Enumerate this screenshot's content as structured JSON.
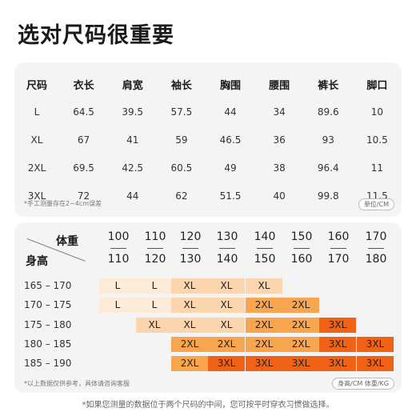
{
  "title": "选对尺码很重要",
  "size_table": {
    "headers": [
      "尺码",
      "衣长",
      "肩宽",
      "袖长",
      "胸围",
      "腰围",
      "裤长",
      "脚口"
    ],
    "rows": [
      [
        "L",
        "64.5",
        "39.5",
        "57.5",
        "44",
        "34",
        "89.6",
        "10"
      ],
      [
        "XL",
        "67",
        "41",
        "59",
        "46.5",
        "36",
        "93",
        "10.5"
      ],
      [
        "2XL",
        "69.5",
        "42.5",
        "60.5",
        "49",
        "38",
        "96.4",
        "11"
      ],
      [
        "3XL",
        "72",
        "44",
        "62",
        "51.5",
        "40",
        "99.8",
        "11.5"
      ]
    ],
    "note": "*手工测量存在2~4cm误差",
    "unit": "单位/CM"
  },
  "recommend": {
    "weight_label": "体重",
    "height_label": "身高",
    "weights": [
      {
        "top": "100",
        "bottom": "110"
      },
      {
        "top": "110",
        "bottom": "120"
      },
      {
        "top": "120",
        "bottom": "130"
      },
      {
        "top": "130",
        "bottom": "140"
      },
      {
        "top": "140",
        "bottom": "150"
      },
      {
        "top": "150",
        "bottom": "160"
      },
      {
        "top": "160",
        "bottom": "170"
      },
      {
        "top": "170",
        "bottom": "180"
      }
    ],
    "heights": [
      "165 – 170",
      "170 – 175",
      "175 – 180",
      "180 – 185",
      "185 – 190"
    ],
    "grid": [
      [
        "L",
        "L",
        "XL",
        "XL",
        "XL",
        "",
        "",
        ""
      ],
      [
        "L",
        "L",
        "XL",
        "XL",
        "2XL",
        "2XL",
        "",
        ""
      ],
      [
        "",
        "XL",
        "XL",
        "XL",
        "2XL",
        "2XL",
        "3XL",
        ""
      ],
      [
        "",
        "",
        "2XL",
        "2XL",
        "2XL",
        "2XL",
        "3XL",
        "3XL"
      ],
      [
        "",
        "",
        "2XL",
        "3XL",
        "3XL",
        "3XL",
        "3XL",
        "3XL"
      ]
    ],
    "note": "*以上数据仅供参考，具体请咨询客服",
    "unit": "身高/CM 体重/KG"
  },
  "footnote": "*如果您测量的数据位于两个尺码的中间，您可按平时穿衣习惯做选择。",
  "colors": {
    "L": "#fcebd9",
    "XL": "#fbd5ad",
    "2XL": "#f7a64f",
    "3XL": "#f06317",
    "card_bg": "#f4f4f4"
  }
}
